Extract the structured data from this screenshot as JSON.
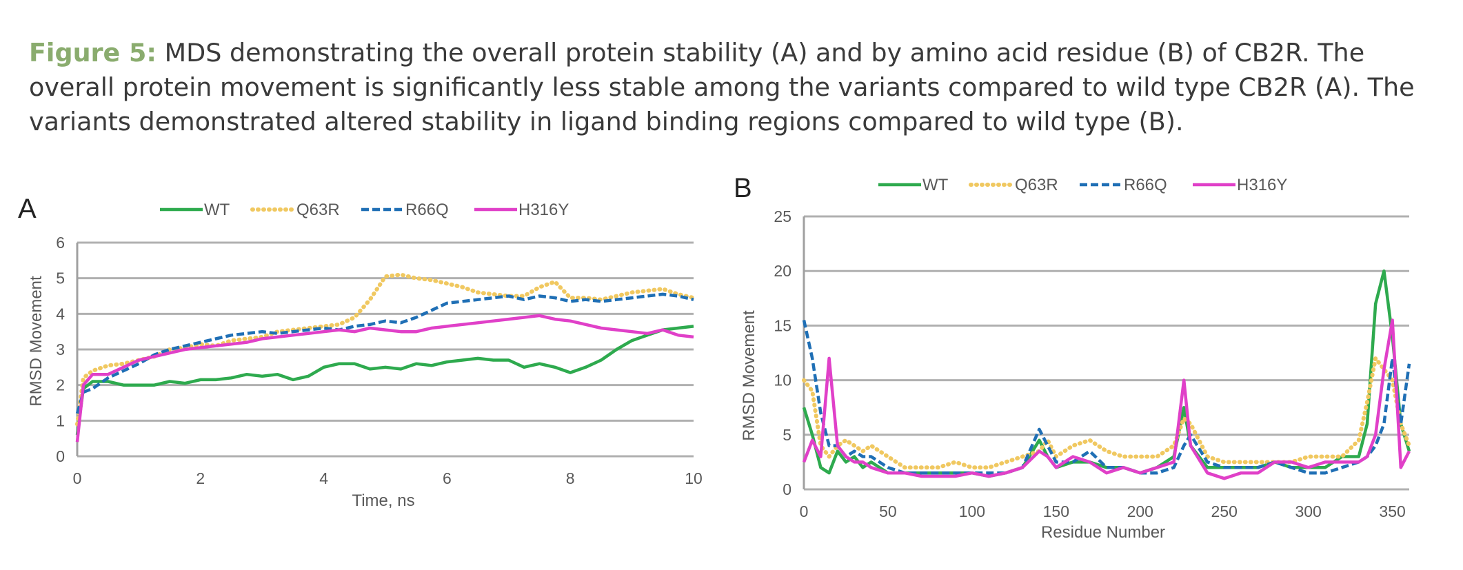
{
  "caption": {
    "label": "Figure 5:",
    "text": "MDS demonstrating the overall protein stability (A) and by amino acid residue (B) of CB2R. The overall protein movement is significantly less stable among the variants compared to wild type CB2R (A). The variants demonstrated altered stability in ligand binding regions compared to wild type (B)."
  },
  "colors": {
    "WT": "#2eaa4e",
    "Q63R": "#f0c860",
    "R66Q": "#1f6fb5",
    "H316Y": "#e040c8",
    "grid": "#b0b0b0",
    "axis": "#a0a0a0"
  },
  "chart_data": [
    {
      "panel": "A",
      "type": "line",
      "title": "",
      "xlabel": "Time, ns",
      "ylabel": "RMSD Movement",
      "xlim": [
        0,
        10
      ],
      "ylim": [
        0,
        6
      ],
      "xticks": [
        0,
        2,
        4,
        6,
        8,
        10
      ],
      "yticks": [
        0,
        1,
        2,
        3,
        4,
        5,
        6
      ],
      "grid": "horizontal",
      "legend": "top",
      "x": [
        0,
        0.1,
        0.25,
        0.5,
        0.75,
        1.0,
        1.25,
        1.5,
        1.75,
        2.0,
        2.25,
        2.5,
        2.75,
        3.0,
        3.25,
        3.5,
        3.75,
        4.0,
        4.25,
        4.5,
        4.75,
        5.0,
        5.25,
        5.5,
        5.75,
        6.0,
        6.25,
        6.5,
        6.75,
        7.0,
        7.25,
        7.5,
        7.75,
        8.0,
        8.25,
        8.5,
        8.75,
        9.0,
        9.25,
        9.5,
        9.75,
        10.0
      ],
      "series": [
        {
          "name": "WT",
          "values": [
            0.6,
            1.9,
            2.1,
            2.1,
            2.0,
            2.0,
            2.0,
            2.1,
            2.05,
            2.15,
            2.15,
            2.2,
            2.3,
            2.25,
            2.3,
            2.15,
            2.25,
            2.5,
            2.6,
            2.6,
            2.45,
            2.5,
            2.45,
            2.6,
            2.55,
            2.65,
            2.7,
            2.75,
            2.7,
            2.7,
            2.5,
            2.6,
            2.5,
            2.35,
            2.5,
            2.7,
            3.0,
            3.25,
            3.4,
            3.55,
            3.6,
            3.65
          ]
        },
        {
          "name": "Q63R",
          "values": [
            0.9,
            2.2,
            2.4,
            2.55,
            2.6,
            2.7,
            2.8,
            3.0,
            3.05,
            3.15,
            3.1,
            3.25,
            3.3,
            3.35,
            3.5,
            3.55,
            3.6,
            3.65,
            3.7,
            3.9,
            4.4,
            5.05,
            5.1,
            5.0,
            4.95,
            4.85,
            4.75,
            4.6,
            4.55,
            4.5,
            4.5,
            4.75,
            4.9,
            4.45,
            4.45,
            4.4,
            4.5,
            4.6,
            4.65,
            4.7,
            4.55,
            4.45
          ]
        },
        {
          "name": "R66Q",
          "values": [
            1.2,
            1.8,
            1.9,
            2.2,
            2.4,
            2.6,
            2.85,
            3.0,
            3.1,
            3.2,
            3.3,
            3.4,
            3.45,
            3.5,
            3.45,
            3.5,
            3.55,
            3.6,
            3.55,
            3.65,
            3.7,
            3.8,
            3.75,
            3.9,
            4.1,
            4.3,
            4.35,
            4.4,
            4.45,
            4.5,
            4.4,
            4.5,
            4.45,
            4.35,
            4.4,
            4.35,
            4.4,
            4.45,
            4.5,
            4.55,
            4.5,
            4.4
          ]
        },
        {
          "name": "H316Y",
          "values": [
            0.4,
            2.0,
            2.3,
            2.3,
            2.5,
            2.7,
            2.8,
            2.9,
            3.0,
            3.05,
            3.1,
            3.15,
            3.2,
            3.3,
            3.35,
            3.4,
            3.45,
            3.5,
            3.55,
            3.5,
            3.6,
            3.55,
            3.5,
            3.5,
            3.6,
            3.65,
            3.7,
            3.75,
            3.8,
            3.85,
            3.9,
            3.95,
            3.85,
            3.8,
            3.7,
            3.6,
            3.55,
            3.5,
            3.45,
            3.55,
            3.4,
            3.35
          ]
        }
      ]
    },
    {
      "panel": "B",
      "type": "line",
      "title": "",
      "xlabel": "Residue Number",
      "ylabel": "RMSD Movement",
      "xlim": [
        0,
        360
      ],
      "ylim": [
        0,
        25
      ],
      "xticks": [
        0,
        50,
        100,
        150,
        200,
        250,
        300,
        350
      ],
      "yticks": [
        0,
        5,
        10,
        15,
        20,
        25
      ],
      "grid": "horizontal",
      "legend": "top",
      "x": [
        0,
        5,
        10,
        15,
        20,
        25,
        30,
        35,
        40,
        50,
        60,
        70,
        80,
        90,
        100,
        110,
        120,
        130,
        140,
        145,
        150,
        160,
        170,
        180,
        190,
        200,
        210,
        220,
        226,
        230,
        240,
        250,
        260,
        270,
        280,
        290,
        300,
        310,
        320,
        330,
        335,
        340,
        345,
        350,
        355,
        360
      ],
      "series": [
        {
          "name": "WT",
          "values": [
            7.5,
            5.0,
            2.0,
            1.5,
            3.5,
            2.5,
            3.0,
            2.0,
            2.5,
            1.5,
            1.5,
            1.5,
            1.5,
            1.5,
            1.5,
            1.2,
            1.5,
            2.0,
            4.5,
            3.0,
            2.0,
            2.5,
            2.5,
            2.0,
            2.0,
            1.5,
            2.0,
            3.0,
            7.5,
            4.0,
            2.0,
            2.0,
            2.0,
            2.0,
            2.5,
            2.0,
            2.0,
            2.0,
            3.0,
            3.0,
            6.0,
            17.0,
            20.0,
            14.0,
            6.0,
            3.5
          ]
        },
        {
          "name": "Q63R",
          "values": [
            10.0,
            9.0,
            4.0,
            3.0,
            4.0,
            4.5,
            4.0,
            3.5,
            4.0,
            3.0,
            2.0,
            2.0,
            2.0,
            2.5,
            2.0,
            2.0,
            2.5,
            3.0,
            3.5,
            4.5,
            3.0,
            4.0,
            4.5,
            3.5,
            3.0,
            3.0,
            3.0,
            4.0,
            6.5,
            6.0,
            3.0,
            2.5,
            2.5,
            2.5,
            2.5,
            2.5,
            3.0,
            3.0,
            3.0,
            4.5,
            8.0,
            12.0,
            11.0,
            10.0,
            6.0,
            4.0
          ]
        },
        {
          "name": "R66Q",
          "values": [
            15.5,
            12.0,
            7.0,
            4.0,
            4.0,
            3.0,
            3.5,
            3.0,
            3.0,
            2.0,
            1.5,
            1.5,
            1.5,
            1.5,
            1.5,
            1.5,
            1.5,
            2.0,
            5.5,
            4.0,
            2.5,
            2.5,
            3.5,
            2.0,
            2.0,
            1.5,
            1.5,
            2.0,
            4.0,
            5.0,
            2.5,
            2.0,
            2.0,
            2.0,
            2.5,
            2.0,
            1.5,
            1.5,
            2.0,
            2.5,
            3.0,
            4.0,
            6.0,
            12.0,
            6.0,
            11.5
          ]
        },
        {
          "name": "H316Y",
          "values": [
            2.5,
            4.5,
            3.0,
            12.0,
            4.0,
            3.0,
            2.5,
            2.5,
            2.0,
            1.5,
            1.5,
            1.2,
            1.2,
            1.2,
            1.5,
            1.2,
            1.5,
            2.0,
            3.5,
            3.0,
            2.0,
            3.0,
            2.5,
            1.5,
            2.0,
            1.5,
            2.0,
            2.5,
            10.0,
            4.0,
            1.5,
            1.0,
            1.5,
            1.5,
            2.5,
            2.5,
            2.0,
            2.5,
            2.5,
            2.5,
            3.0,
            5.0,
            11.0,
            15.5,
            2.0,
            3.5
          ]
        }
      ]
    }
  ]
}
